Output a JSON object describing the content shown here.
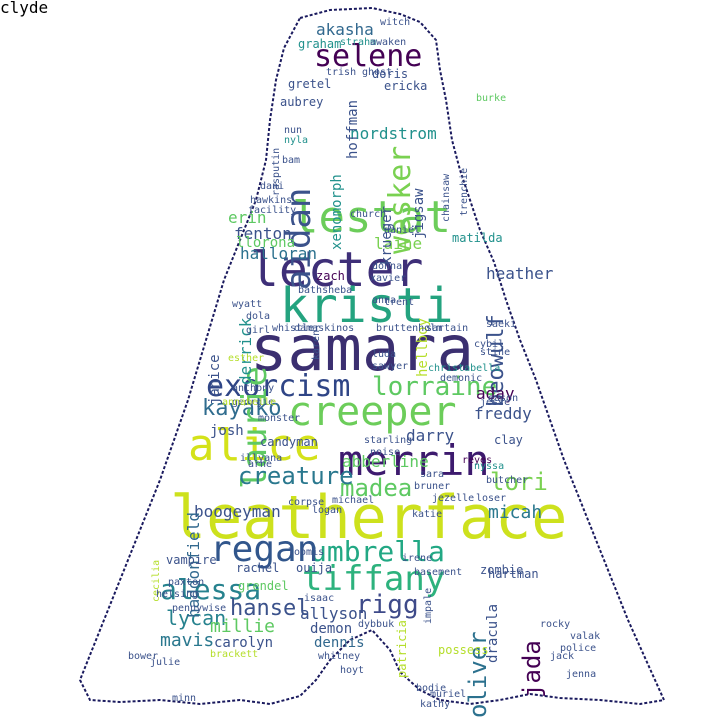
{
  "palette": {
    "dark_purple": "#440154",
    "indigo": "#3b528b",
    "teal": "#21918c",
    "green": "#5ec962",
    "yellow": "#fde725",
    "lime": "#b5de2b",
    "outline": "#1a1a5e"
  },
  "words": [
    {
      "text": "samara",
      "color": "#3b2f70"
    },
    {
      "text": "leatherface",
      "color": "#cde11d"
    },
    {
      "text": "creeper",
      "color": "#6ccd5a"
    },
    {
      "text": "lecter",
      "color": "#3e2f78"
    },
    {
      "text": "kristi",
      "color": "#24a37f"
    },
    {
      "text": "merrin",
      "color": "#3d1a6e"
    },
    {
      "text": "alice",
      "color": "#d4e21a"
    },
    {
      "text": "lestat",
      "color": "#6ccd5a"
    },
    {
      "text": "exorcism",
      "color": "#2f4586"
    },
    {
      "text": "lorraine",
      "color": "#5ec962"
    },
    {
      "text": "umbrella",
      "color": "#22a884"
    },
    {
      "text": "regan",
      "color": "#31568c"
    },
    {
      "text": "tiffany",
      "color": "#2db27d"
    },
    {
      "text": "selene",
      "color": "#440154"
    },
    {
      "text": "alessa",
      "color": "#26828e"
    },
    {
      "text": "kayako",
      "color": "#2f6c8e"
    },
    {
      "text": "laurie",
      "color": "#5ec962"
    },
    {
      "text": "aidan",
      "color": "#3b528b"
    },
    {
      "text": "wesker",
      "color": "#7ad151"
    },
    {
      "text": "madea",
      "color": "#5ec962"
    },
    {
      "text": "creature",
      "color": "#2a788e"
    },
    {
      "text": "oliver",
      "color": "#2c718e"
    },
    {
      "text": "rigg",
      "color": "#3e4a89"
    },
    {
      "text": "jada",
      "color": "#440154"
    },
    {
      "text": "beowulf",
      "color": "#3b528b"
    },
    {
      "text": "lori",
      "color": "#7ad151"
    },
    {
      "text": "hansel",
      "color": "#3b528b"
    },
    {
      "text": "lycan",
      "color": "#26828e"
    },
    {
      "text": "mavis",
      "color": "#2a788e"
    },
    {
      "text": "millie",
      "color": "#5ec962"
    },
    {
      "text": "boogeyman",
      "color": "#3b528b"
    },
    {
      "text": "micah",
      "color": "#2a788e"
    },
    {
      "text": "akasha",
      "color": "#31688e"
    },
    {
      "text": "nordstrom",
      "color": "#21918c"
    },
    {
      "text": "halloran",
      "color": "#2c718e"
    },
    {
      "text": "fenton",
      "color": "#3b528b"
    },
    {
      "text": "erin",
      "color": "#5ec962"
    },
    {
      "text": "laine",
      "color": "#7ad151"
    },
    {
      "text": "heather",
      "color": "#3b528b"
    },
    {
      "text": "hellboy",
      "color": "#b5de2b"
    },
    {
      "text": "derrick",
      "color": "#21918c"
    },
    {
      "text": "abberline",
      "color": "#5ec962"
    },
    {
      "text": "darry",
      "color": "#3b528b"
    },
    {
      "text": "freddy",
      "color": "#3b528b"
    },
    {
      "text": "aday",
      "color": "#440154"
    },
    {
      "text": "haddonfield",
      "color": "#31688e"
    },
    {
      "text": "janice",
      "color": "#3b528b"
    },
    {
      "text": "josh",
      "color": "#3b528b"
    },
    {
      "text": "allyson",
      "color": "#3b528b"
    },
    {
      "text": "demon",
      "color": "#3b528b"
    },
    {
      "text": "dennis",
      "color": "#31688e"
    },
    {
      "text": "carolyn",
      "color": "#3b528b"
    },
    {
      "text": "rachel",
      "color": "#3b528b"
    },
    {
      "text": "ouija",
      "color": "#3b528b"
    },
    {
      "text": "vampire",
      "color": "#3b528b"
    },
    {
      "text": "grendel",
      "color": "#5ec962"
    },
    {
      "text": "candyman",
      "color": "#3b528b"
    },
    {
      "text": "krueger",
      "color": "#3b528b"
    },
    {
      "text": "xenomorph",
      "color": "#21918c"
    },
    {
      "text": "jigsaw",
      "color": "#3b528b"
    },
    {
      "text": "hoffman",
      "color": "#3b528b"
    },
    {
      "text": "doris",
      "color": "#3b528b"
    },
    {
      "text": "ericka",
      "color": "#3b528b"
    },
    {
      "text": "gretel",
      "color": "#3b528b"
    },
    {
      "text": "aubrey",
      "color": "#3b528b"
    },
    {
      "text": "graham",
      "color": "#21918c"
    },
    {
      "text": "strahm",
      "color": "#21918c"
    },
    {
      "text": "awaken",
      "color": "#3b528b"
    },
    {
      "text": "witch",
      "color": "#3b528b"
    },
    {
      "text": "trish",
      "color": "#3b528b"
    },
    {
      "text": "ghost",
      "color": "#3b528b"
    },
    {
      "text": "burke",
      "color": "#5ec962"
    },
    {
      "text": "nun",
      "color": "#3b528b"
    },
    {
      "text": "nyla",
      "color": "#21918c"
    },
    {
      "text": "rasputin",
      "color": "#3b528b"
    },
    {
      "text": "bam",
      "color": "#3b528b"
    },
    {
      "text": "chainsaw",
      "color": "#3b528b"
    },
    {
      "text": "trenchie",
      "color": "#3b528b"
    },
    {
      "text": "dani",
      "color": "#3b528b"
    },
    {
      "text": "hawkins",
      "color": "#3b528b"
    },
    {
      "text": "facility",
      "color": "#3b528b"
    },
    {
      "text": "church",
      "color": "#3b528b"
    },
    {
      "text": "daniel",
      "color": "#3b528b"
    },
    {
      "text": "matilda",
      "color": "#21918c"
    },
    {
      "text": "llorona",
      "color": "#5ec962"
    },
    {
      "text": "zach",
      "color": "#440154"
    },
    {
      "text": "donna",
      "color": "#3b528b"
    },
    {
      "text": "xavier",
      "color": "#3b528b"
    },
    {
      "text": "wyatt",
      "color": "#3b528b"
    },
    {
      "text": "dola",
      "color": "#3b528b"
    },
    {
      "text": "girl",
      "color": "#3b528b"
    },
    {
      "text": "bathsheba",
      "color": "#3b528b"
    },
    {
      "text": "trent",
      "color": "#3b528b"
    },
    {
      "text": "anna",
      "color": "#3b528b"
    },
    {
      "text": "karen",
      "color": "#3b528b"
    },
    {
      "text": "whistler",
      "color": "#3b528b"
    },
    {
      "text": "damaskinos",
      "color": "#3b528b"
    },
    {
      "text": "bruttenholm",
      "color": "#3b528b"
    },
    {
      "text": "sartain",
      "color": "#3b528b"
    },
    {
      "text": "saeki",
      "color": "#3b528b"
    },
    {
      "text": "cybil",
      "color": "#3b528b"
    },
    {
      "text": "esther",
      "color": "#b5de2b"
    },
    {
      "text": "luda",
      "color": "#3b528b"
    },
    {
      "text": "sawyer",
      "color": "#3b528b"
    },
    {
      "text": "christabella",
      "color": "#21918c"
    },
    {
      "text": "demonic",
      "color": "#3b528b"
    },
    {
      "text": "stine",
      "color": "#3b528b"
    },
    {
      "text": "anthony",
      "color": "#3b528b"
    },
    {
      "text": "georgie",
      "color": "#3b528b"
    },
    {
      "text": "monster",
      "color": "#3b528b"
    },
    {
      "text": "annabelle",
      "color": "#b5de2b"
    },
    {
      "text": "eason",
      "color": "#3b528b"
    },
    {
      "text": "jesse",
      "color": "#3b528b"
    },
    {
      "text": "clay",
      "color": "#3b528b"
    },
    {
      "text": "starling",
      "color": "#3b528b"
    },
    {
      "text": "noise",
      "color": "#3b528b"
    },
    {
      "text": "illyana",
      "color": "#3b528b"
    },
    {
      "text": "arne",
      "color": "#3b528b"
    },
    {
      "text": "reyes",
      "color": "#440154"
    },
    {
      "text": "nyssa",
      "color": "#21918c"
    },
    {
      "text": "butcher",
      "color": "#3b528b"
    },
    {
      "text": "sara",
      "color": "#3b528b"
    },
    {
      "text": "bruner",
      "color": "#3b528b"
    },
    {
      "text": "michael",
      "color": "#3b528b"
    },
    {
      "text": "logan",
      "color": "#3b528b"
    },
    {
      "text": "corpse",
      "color": "#3b528b"
    },
    {
      "text": "jezelle",
      "color": "#3b528b"
    },
    {
      "text": "loser",
      "color": "#3b528b"
    },
    {
      "text": "katie",
      "color": "#3b528b"
    },
    {
      "text": "cecilia",
      "color": "#b5de2b"
    },
    {
      "text": "paxton",
      "color": "#3b528b"
    },
    {
      "text": "helsing",
      "color": "#3b528b"
    },
    {
      "text": "pennywise",
      "color": "#3b528b"
    },
    {
      "text": "loomis",
      "color": "#3b528b"
    },
    {
      "text": "irene",
      "color": "#3b528b"
    },
    {
      "text": "basement",
      "color": "#3b528b"
    },
    {
      "text": "hartman",
      "color": "#3b528b"
    },
    {
      "text": "zombie",
      "color": "#3b528b"
    },
    {
      "text": "impale",
      "color": "#3b528b"
    },
    {
      "text": "dracula",
      "color": "#3b528b"
    },
    {
      "text": "patricia",
      "color": "#b5de2b"
    },
    {
      "text": "isaac",
      "color": "#3b528b"
    },
    {
      "text": "dybbuk",
      "color": "#3b528b"
    },
    {
      "text": "possess",
      "color": "#b5de2b"
    },
    {
      "text": "jack",
      "color": "#3b528b"
    },
    {
      "text": "rocky",
      "color": "#3b528b"
    },
    {
      "text": "valak",
      "color": "#3b528b"
    },
    {
      "text": "police",
      "color": "#3b528b"
    },
    {
      "text": "julie",
      "color": "#3b528b"
    },
    {
      "text": "brackett",
      "color": "#b5de2b"
    },
    {
      "text": "whitney",
      "color": "#3b528b"
    },
    {
      "text": "hoyt",
      "color": "#3b528b"
    },
    {
      "text": "minn",
      "color": "#3b528b"
    },
    {
      "text": "bodie",
      "color": "#3b528b"
    },
    {
      "text": "kathy",
      "color": "#3b528b"
    },
    {
      "text": "muriel",
      "color": "#3b528b"
    },
    {
      "text": "bower",
      "color": "#3b528b"
    },
    {
      "text": "jenna",
      "color": "#3b528b"
    },
    {
      "text": "clyde",
      "color": "#3b528b"
    }
  ]
}
